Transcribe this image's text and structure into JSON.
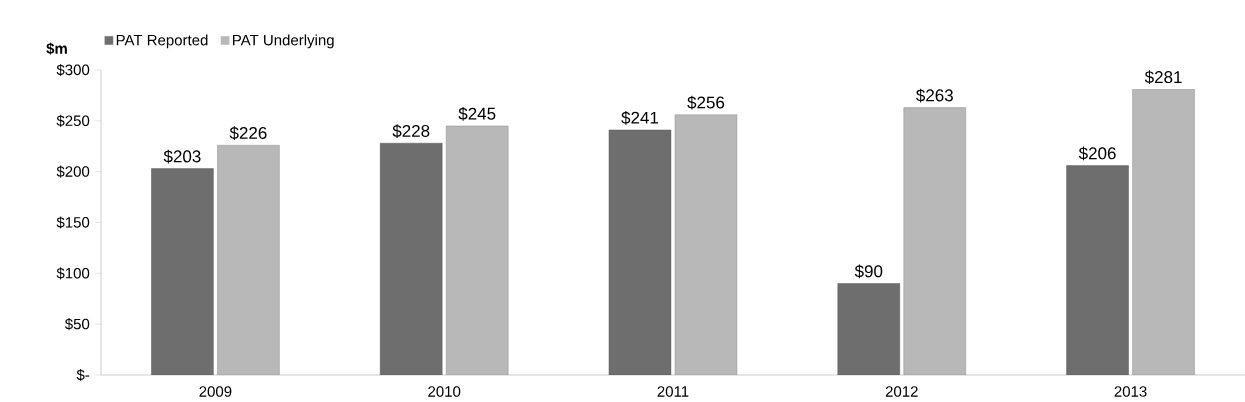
{
  "chart_data": {
    "type": "bar",
    "ylabel": "$m",
    "categories": [
      "2009",
      "2010",
      "2011",
      "2012",
      "2013"
    ],
    "series": [
      {
        "name": "PAT Reported",
        "color": "#6e6e6e",
        "values": [
          203,
          228,
          241,
          90,
          206
        ],
        "value_labels": [
          "$203",
          "$228",
          "$241",
          "$90",
          "$206"
        ]
      },
      {
        "name": "PAT Underlying",
        "color": "#b8b8b8",
        "values": [
          226,
          245,
          256,
          263,
          281
        ],
        "value_labels": [
          "$226",
          "$245",
          "$256",
          "$263",
          "$281"
        ]
      }
    ],
    "ylim": [
      0,
      300
    ],
    "yticks": [
      {
        "value": 0,
        "label": "$-"
      },
      {
        "value": 50,
        "label": "$50"
      },
      {
        "value": 100,
        "label": "$100"
      },
      {
        "value": 150,
        "label": "$150"
      },
      {
        "value": 200,
        "label": "$200"
      },
      {
        "value": 250,
        "label": "$250"
      },
      {
        "value": 300,
        "label": "$300"
      }
    ],
    "grid": false,
    "legend": "top left"
  }
}
